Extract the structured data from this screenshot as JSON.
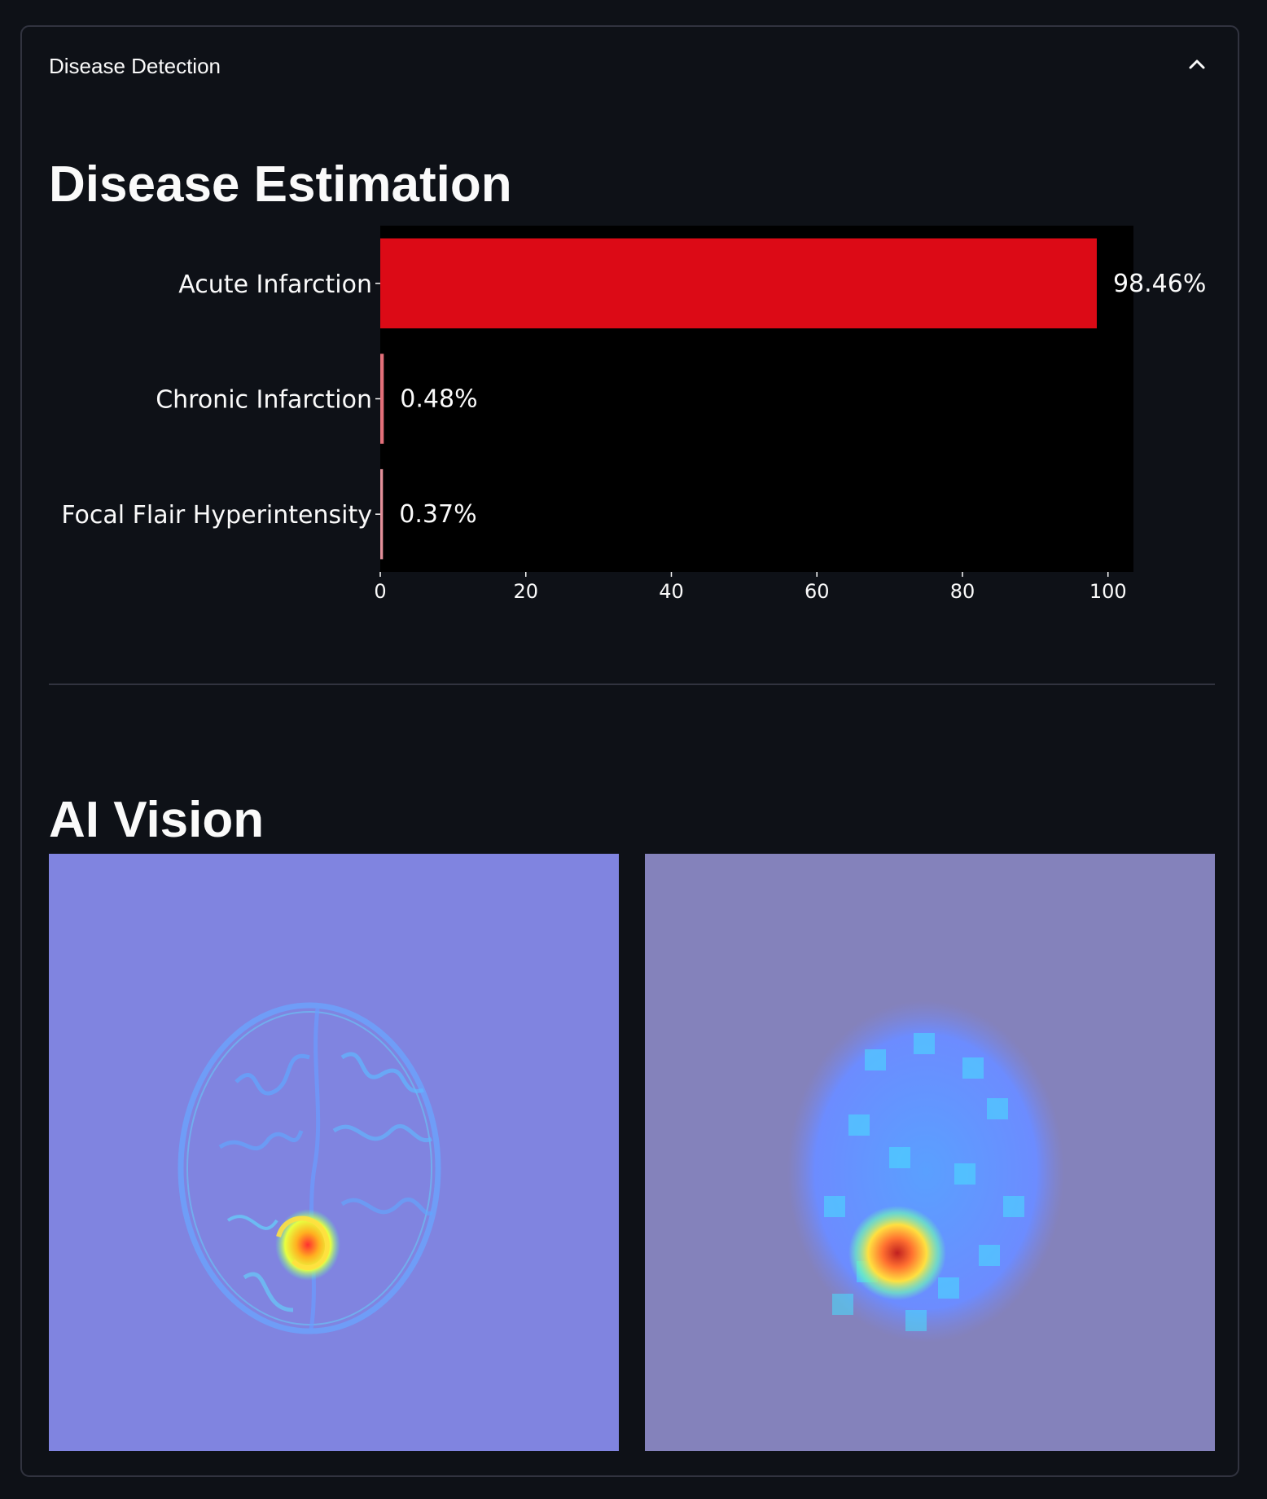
{
  "expander": {
    "title": "Disease Detection",
    "toggle_icon": "chevron-up-icon"
  },
  "sections": {
    "estimation_title": "Disease Estimation",
    "vision_title": "AI Vision"
  },
  "chart_data": {
    "type": "bar",
    "orientation": "horizontal",
    "categories": [
      "Acute Infarction",
      "Chronic Infarction",
      "Focal Flair Hyperintensity"
    ],
    "values": [
      98.46,
      0.48,
      0.37
    ],
    "data_labels": [
      "98.46%",
      "0.48%",
      "0.37%"
    ],
    "bar_colors": [
      "#dc0a16",
      "#e3707a",
      "#e3909a"
    ],
    "xlim": [
      0,
      103.5
    ],
    "xticks": [
      0,
      20,
      40,
      60,
      80,
      100
    ],
    "plot_bg": "#000000",
    "title": "",
    "xlabel": "",
    "ylabel": ""
  },
  "ai_vision": {
    "images": [
      {
        "name": "attention-map-fine",
        "background": "#8084e0"
      },
      {
        "name": "attention-map-coarse",
        "background": "#8482bb"
      }
    ]
  }
}
